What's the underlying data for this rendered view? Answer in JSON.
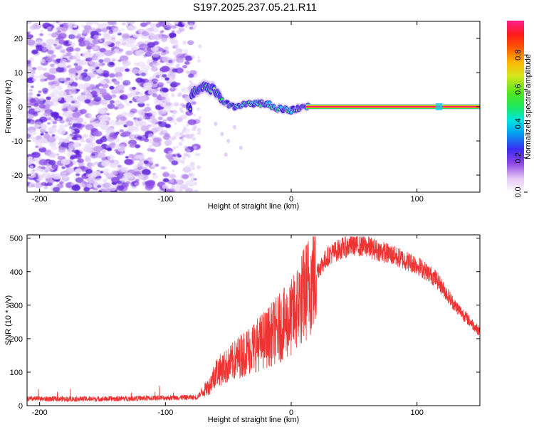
{
  "title": "S197.2025.237.05.21.R11",
  "colorbar": {
    "label": "Normalized spectral amplitude",
    "ticks": [
      "0.0",
      "0.2",
      "0.4",
      "0.6",
      "0.8"
    ]
  },
  "chart_data": [
    {
      "type": "heatmap",
      "name": "spectrogram",
      "xlabel": "Height of straight line (km)",
      "ylabel": "Frequency (Hz)",
      "xlim": [
        -210,
        150
      ],
      "ylim": [
        -25,
        25
      ],
      "xticks": [
        "-200",
        "-100",
        "0",
        "100"
      ],
      "yticks": [
        "20",
        "10",
        "0",
        "-10",
        "-20"
      ],
      "noise_region": {
        "x_from": -210,
        "x_to": -75,
        "note": "scattered low-amplitude speckle"
      },
      "ridge": [
        {
          "x": -80,
          "f": 3.5
        },
        {
          "x": -70,
          "f": 6.0
        },
        {
          "x": -62,
          "f": 5.0
        },
        {
          "x": -55,
          "f": 2.0
        },
        {
          "x": -45,
          "f": -0.5
        },
        {
          "x": -35,
          "f": 1.0
        },
        {
          "x": -20,
          "f": 1.0
        },
        {
          "x": -10,
          "f": -0.5
        },
        {
          "x": 0,
          "f": -1.0
        },
        {
          "x": 10,
          "f": 0.0
        },
        {
          "x": 150,
          "f": 0.0
        }
      ],
      "steady_line": {
        "x_from": 12,
        "x_to": 150,
        "f": 0.0,
        "amplitude": 0.95
      }
    },
    {
      "type": "line",
      "name": "snr",
      "xlabel": "Height of straight line (km)",
      "ylabel": "SNR (10 * v/v)",
      "xlim": [
        -210,
        150
      ],
      "ylim": [
        0,
        510
      ],
      "xticks": [
        "-200",
        "-100",
        "0",
        "100"
      ],
      "yticks": [
        "500",
        "400",
        "300",
        "200",
        "100",
        "0"
      ],
      "color": "#ee3333",
      "envelope": [
        {
          "x": -210,
          "y": 20
        },
        {
          "x": -150,
          "y": 20
        },
        {
          "x": -75,
          "y": 25
        },
        {
          "x": -65,
          "y": 60
        },
        {
          "x": -60,
          "y": 100
        },
        {
          "x": -50,
          "y": 120
        },
        {
          "x": -40,
          "y": 150
        },
        {
          "x": -20,
          "y": 200
        },
        {
          "x": 0,
          "y": 260
        },
        {
          "x": 10,
          "y": 330
        },
        {
          "x": 20,
          "y": 400
        },
        {
          "x": 30,
          "y": 450
        },
        {
          "x": 40,
          "y": 470
        },
        {
          "x": 50,
          "y": 480
        },
        {
          "x": 60,
          "y": 475
        },
        {
          "x": 80,
          "y": 450
        },
        {
          "x": 100,
          "y": 420
        },
        {
          "x": 115,
          "y": 380
        },
        {
          "x": 130,
          "y": 300
        },
        {
          "x": 150,
          "y": 220
        }
      ]
    }
  ]
}
